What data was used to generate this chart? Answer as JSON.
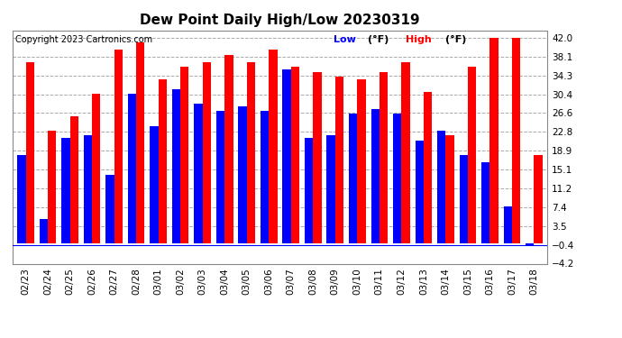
{
  "title": "Dew Point Daily High/Low 20230319",
  "copyright": "Copyright 2023 Cartronics.com",
  "legend_low_label": "Low",
  "legend_high_label": "High",
  "legend_unit": "(°F)",
  "dates": [
    "02/23",
    "02/24",
    "02/25",
    "02/26",
    "02/27",
    "02/28",
    "03/01",
    "03/02",
    "03/03",
    "03/04",
    "03/05",
    "03/06",
    "03/07",
    "03/08",
    "03/09",
    "03/10",
    "03/11",
    "03/12",
    "03/13",
    "03/14",
    "03/15",
    "03/16",
    "03/17",
    "03/18"
  ],
  "high_values": [
    37.0,
    23.0,
    26.0,
    30.5,
    39.5,
    41.0,
    33.5,
    36.0,
    37.0,
    38.5,
    37.0,
    39.5,
    36.0,
    35.0,
    34.0,
    33.5,
    35.0,
    37.0,
    31.0,
    22.0,
    36.0,
    42.0,
    42.0,
    18.0
  ],
  "low_values": [
    18.0,
    5.0,
    21.5,
    22.0,
    14.0,
    30.5,
    24.0,
    31.5,
    28.5,
    27.0,
    28.0,
    27.0,
    35.5,
    21.5,
    22.0,
    26.5,
    27.5,
    26.5,
    21.0,
    23.0,
    18.0,
    16.5,
    7.5,
    -0.5
  ],
  "bar_width": 0.38,
  "high_color": "#ff0000",
  "low_color": "#0000ff",
  "bg_color": "#ffffff",
  "grid_color": "#aaaaaa",
  "ylim_min": -4.2,
  "ylim_max": 43.5,
  "yticks": [
    42.0,
    38.1,
    34.3,
    30.4,
    26.6,
    22.8,
    18.9,
    15.1,
    11.2,
    7.4,
    3.5,
    -0.4,
    -4.2
  ],
  "title_fontsize": 11,
  "copyright_fontsize": 7,
  "tick_fontsize": 7.5,
  "legend_fontsize": 8
}
